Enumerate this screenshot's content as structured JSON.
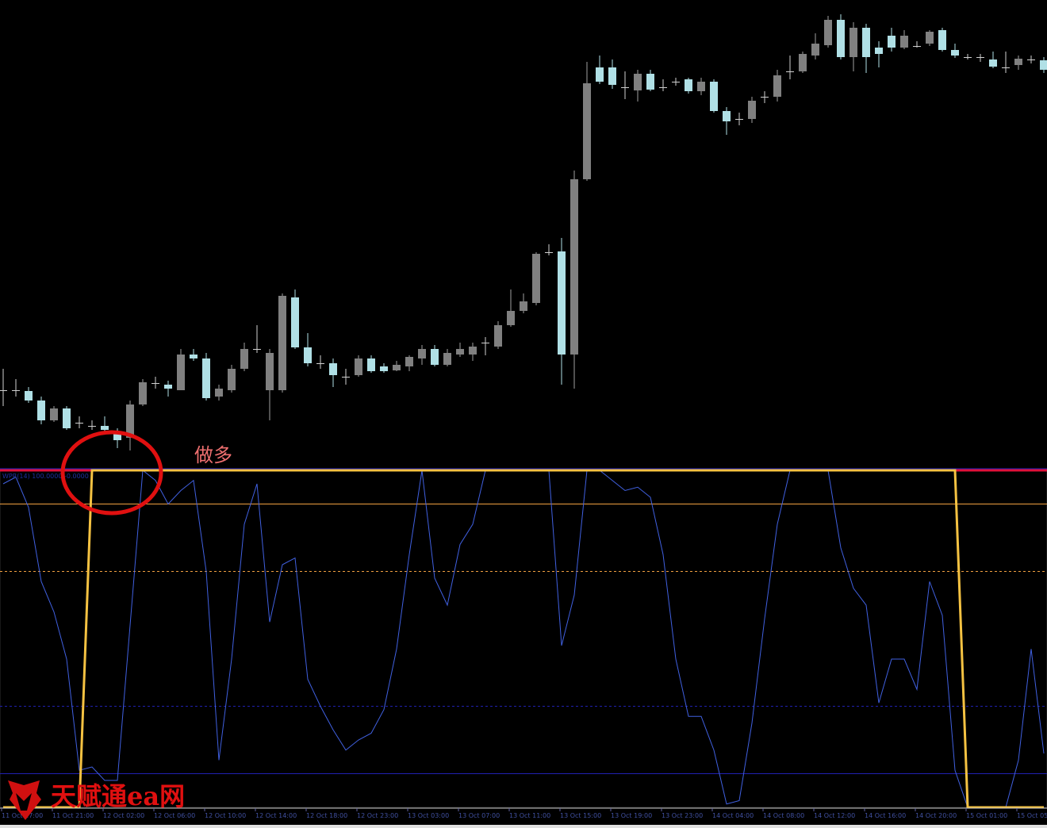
{
  "chart_data": [
    {
      "type": "candlestick",
      "annotation": "做多",
      "up_color": "#808080",
      "down_color": "#b0e0e6",
      "ylim": [
        10,
        600
      ],
      "open": [
        108,
        108,
        107,
        95,
        70,
        85,
        67,
        63,
        63,
        55,
        48,
        90,
        117,
        115,
        108,
        153,
        148,
        100,
        108,
        135,
        160,
        108,
        108,
        225,
        162,
        142,
        142,
        125,
        127,
        148,
        138,
        133,
        138,
        148,
        160,
        140,
        153,
        153,
        168,
        163,
        190,
        208,
        218,
        282,
        283,
        153,
        374,
        515,
        515,
        490,
        486,
        507,
        490,
        497,
        500,
        485,
        497,
        460,
        450,
        450,
        478,
        478,
        510,
        510,
        530,
        543,
        575,
        528,
        565,
        540,
        555,
        540,
        542,
        545,
        562,
        537,
        528,
        528,
        525,
        515,
        518,
        525,
        524
      ],
      "high": [
        135,
        122,
        112,
        100,
        88,
        88,
        75,
        70,
        75,
        60,
        95,
        122,
        125,
        120,
        160,
        160,
        155,
        115,
        140,
        168,
        190,
        160,
        230,
        235,
        180,
        152,
        148,
        135,
        152,
        152,
        142,
        145,
        152,
        165,
        165,
        160,
        168,
        168,
        175,
        195,
        235,
        230,
        282,
        292,
        300,
        385,
        522,
        530,
        525,
        510,
        512,
        512,
        500,
        502,
        502,
        502,
        500,
        465,
        458,
        478,
        485,
        512,
        530,
        535,
        558,
        580,
        582,
        572,
        570,
        548,
        565,
        562,
        548,
        562,
        565,
        545,
        532,
        532,
        535,
        535,
        530,
        530,
        528
      ],
      "low": [
        88,
        100,
        92,
        65,
        68,
        58,
        60,
        58,
        55,
        35,
        32,
        88,
        110,
        100,
        108,
        145,
        95,
        95,
        105,
        132,
        155,
        70,
        105,
        160,
        138,
        135,
        112,
        115,
        125,
        130,
        130,
        132,
        132,
        140,
        138,
        138,
        150,
        145,
        152,
        160,
        188,
        205,
        215,
        278,
        115,
        110,
        372,
        494,
        488,
        475,
        472,
        485,
        485,
        492,
        482,
        480,
        458,
        430,
        442,
        445,
        470,
        472,
        500,
        508,
        525,
        540,
        525,
        510,
        508,
        515,
        535,
        538,
        540,
        542,
        535,
        527,
        525,
        522,
        514,
        508,
        512,
        520,
        508
      ],
      "close": [
        108,
        108,
        95,
        70,
        85,
        60,
        67,
        63,
        58,
        45,
        90,
        118,
        117,
        110,
        153,
        148,
        98,
        110,
        135,
        160,
        160,
        155,
        227,
        162,
        142,
        142,
        127,
        125,
        148,
        132,
        132,
        140,
        150,
        160,
        140,
        155,
        160,
        163,
        168,
        190,
        208,
        220,
        280,
        282,
        153,
        374,
        495,
        497,
        493,
        490,
        507,
        487,
        490,
        497,
        485,
        497,
        460,
        447,
        450,
        473,
        478,
        505,
        510,
        532,
        545,
        575,
        528,
        565,
        528,
        532,
        540,
        555,
        542,
        560,
        537,
        530,
        528,
        528,
        516,
        515,
        526,
        525,
        512
      ]
    },
    {
      "type": "line",
      "indicator_label": "WPR(14) 100.0000 -0.0000",
      "ylim": [
        -100,
        0
      ],
      "levels": [
        {
          "value": 0,
          "color": "#e0103a"
        },
        {
          "value": -10,
          "color": "#f0a040"
        },
        {
          "value": -30,
          "color": "#f0a040",
          "dashed": true
        },
        {
          "value": -70,
          "color": "#2020b0",
          "dashed": true
        },
        {
          "value": -90,
          "color": "#2020b0"
        }
      ],
      "categories": [
        "11 Oct 17:00",
        null,
        null,
        null,
        "11 Oct 21:00",
        null,
        null,
        null,
        "12 Oct 02:00",
        null,
        null,
        null,
        "12 Oct 06:00",
        null,
        null,
        null,
        "12 Oct 10:00",
        null,
        null,
        null,
        "12 Oct 14:00",
        null,
        null,
        null,
        "12 Oct 18:00",
        null,
        null,
        null,
        "12 Oct 23:00",
        null,
        null,
        null,
        "13 Oct 03:00",
        null,
        null,
        null,
        "13 Oct 07:00",
        null,
        null,
        null,
        "13 Oct 11:00",
        null,
        null,
        null,
        "13 Oct 15:00",
        null,
        null,
        null,
        "13 Oct 19:00",
        null,
        null,
        null,
        "13 Oct 23:00",
        null,
        null,
        null,
        "14 Oct 04:00",
        null,
        null,
        null,
        "14 Oct 08:00",
        null,
        null,
        null,
        "14 Oct 12:00",
        null,
        null,
        null,
        "14 Oct 16:00",
        null,
        null,
        null,
        "14 Oct 20:00",
        null,
        null,
        null,
        "15 Oct 01:00",
        null,
        null,
        null,
        "15 Oct 05:00",
        null,
        null
      ],
      "series": [
        {
          "color": "#4060e0",
          "width": 1,
          "values": [
            -4,
            -2,
            -11,
            -33,
            -42,
            -56,
            -89,
            -88,
            -92,
            -92,
            -46,
            0,
            -3,
            -10,
            -6,
            -3,
            -30,
            -86,
            -56,
            -16,
            -4,
            -45,
            -28,
            -26,
            -62,
            -70,
            -77,
            -83,
            -80,
            -78,
            -71,
            -53,
            -25,
            0,
            -32,
            -40,
            -22,
            -16,
            0,
            0,
            0,
            0,
            0,
            0,
            -52,
            -37,
            0,
            0,
            -3,
            -6,
            -5,
            -8,
            -25,
            -56,
            -73,
            -73,
            -83,
            -99,
            -98,
            -75,
            -44,
            -16,
            0,
            0,
            0,
            0,
            -23,
            -35,
            -40,
            -69,
            -56,
            -56,
            -65,
            -33,
            -43,
            -89,
            -100,
            -100,
            -100,
            -100,
            -86,
            -53,
            -84
          ]
        },
        {
          "color": "#f5c242",
          "width": 3,
          "values": [
            -100,
            -100,
            -100,
            -100,
            -100,
            -100,
            -100,
            0,
            0,
            0,
            0,
            0,
            0,
            0,
            0,
            0,
            0,
            0,
            0,
            0,
            0,
            0,
            0,
            0,
            0,
            0,
            0,
            0,
            0,
            0,
            0,
            0,
            0,
            0,
            0,
            0,
            0,
            0,
            0,
            0,
            0,
            0,
            0,
            0,
            0,
            0,
            0,
            0,
            0,
            0,
            0,
            0,
            0,
            0,
            0,
            0,
            0,
            0,
            0,
            0,
            0,
            0,
            0,
            0,
            0,
            0,
            0,
            0,
            0,
            0,
            0,
            0,
            0,
            0,
            0,
            0,
            -100,
            -100,
            -100,
            -100,
            -100,
            -100,
            -100
          ]
        }
      ]
    }
  ],
  "watermark": "天赋通ea网"
}
